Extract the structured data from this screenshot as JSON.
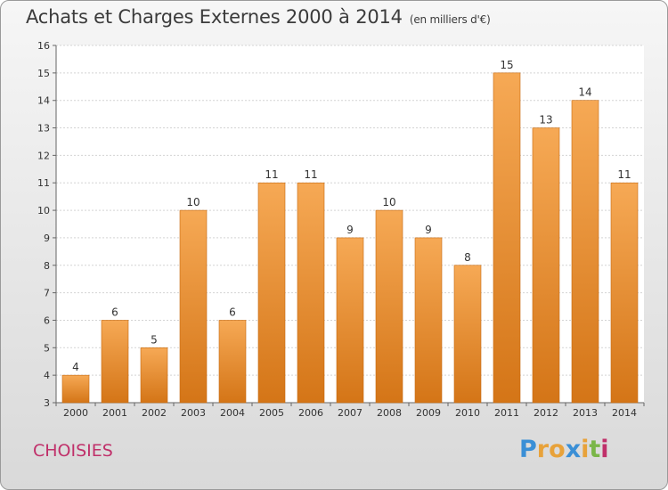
{
  "title": "Achats et Charges Externes 2000 à 2014",
  "unit": "(en milliers d'€)",
  "town": "CHOISIES",
  "logo": {
    "letters": [
      "P",
      "r",
      "o",
      "x",
      "i",
      "t",
      "i"
    ],
    "colors": [
      "#3a8fd6",
      "#e8a23a",
      "#e8a23a",
      "#3a8fd6",
      "#e8a23a",
      "#7ab648",
      "#c0306a"
    ]
  },
  "colors": {
    "bar_top": "#f6a955",
    "bar_bottom": "#d47517",
    "bar_edge": "#c56a12"
  },
  "chart_data": {
    "type": "bar",
    "categories": [
      "2000",
      "2001",
      "2002",
      "2003",
      "2004",
      "2005",
      "2006",
      "2007",
      "2008",
      "2009",
      "2010",
      "2011",
      "2012",
      "2013",
      "2014"
    ],
    "values": [
      4,
      6,
      5,
      10,
      6,
      11,
      11,
      9,
      10,
      9,
      8,
      15,
      13,
      14,
      11
    ],
    "data_labels": [
      "4",
      "6",
      "5",
      "10",
      "6",
      "11",
      "11",
      "9",
      "10",
      "9",
      "8",
      "15",
      "13",
      "14",
      "11"
    ],
    "yticks": [
      "3",
      "4",
      "5",
      "6",
      "7",
      "8",
      "9",
      "10",
      "11",
      "12",
      "13",
      "14",
      "15",
      "16"
    ],
    "ylim": [
      3,
      16
    ],
    "grid": true,
    "xlabel": "",
    "ylabel": ""
  }
}
